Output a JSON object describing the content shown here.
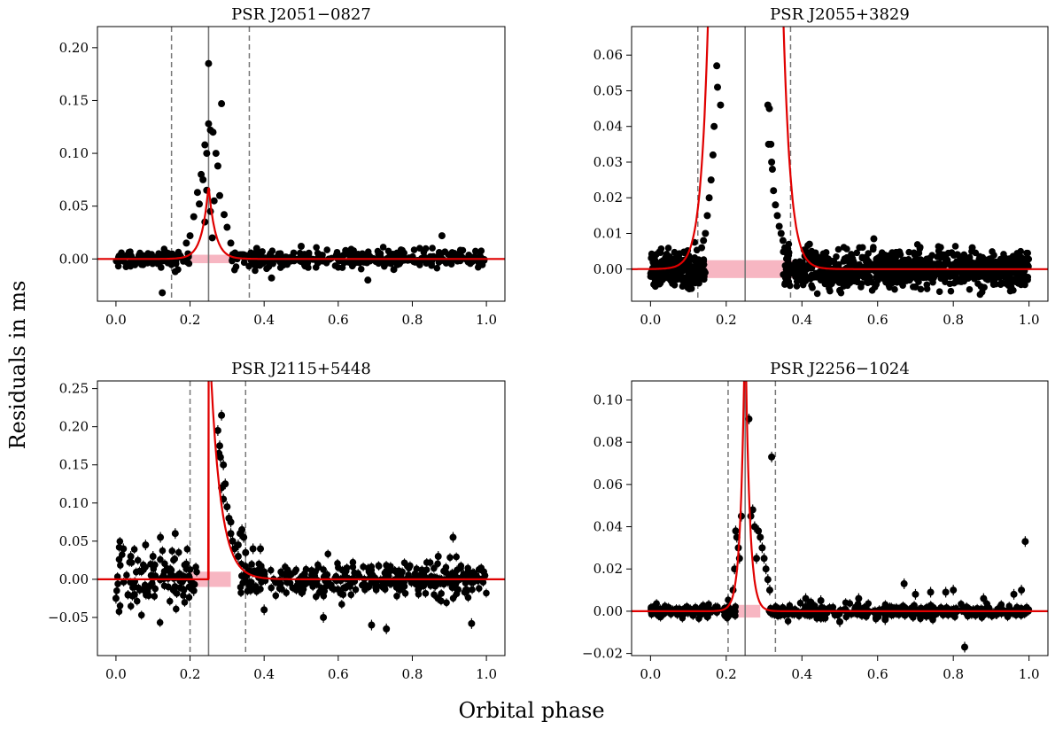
{
  "figure": {
    "ylabel": "Residuals in ms",
    "xlabel": "Orbital phase"
  },
  "chart_data": [
    {
      "type": "scatter",
      "title": "PSR J2051−0827",
      "xlabel": "Orbital phase",
      "ylabel": "Residuals in ms",
      "xlim": [
        -0.05,
        1.05
      ],
      "ylim": [
        -0.04,
        0.22
      ],
      "xticks": [
        0.0,
        0.2,
        0.4,
        0.6,
        0.8,
        1.0
      ],
      "xtick_labels": [
        "0.0",
        "0.2",
        "0.4",
        "0.6",
        "0.8",
        "1.0"
      ],
      "yticks": [
        0.0,
        0.05,
        0.1,
        0.15,
        0.2
      ],
      "ytick_labels": [
        "0.00",
        "0.05",
        "0.10",
        "0.15",
        "0.20"
      ],
      "eclipse_center": 0.25,
      "eclipse_bounds": [
        0.15,
        0.36
      ],
      "shaded_band": {
        "x": [
          0.2,
          0.31
        ],
        "y": [
          -0.004,
          0.004
        ],
        "color": "#f7b6c2"
      },
      "fit": {
        "type": "peak",
        "center": 0.25,
        "amplitude": 0.07,
        "width": 0.018,
        "color": "#e00000"
      },
      "baseline_scatter": 0.004,
      "highlights": [
        [
          0.25,
          0.185
        ],
        [
          0.285,
          0.147
        ],
        [
          0.25,
          0.128
        ],
        [
          0.255,
          0.122
        ],
        [
          0.262,
          0.12
        ],
        [
          0.24,
          0.108
        ],
        [
          0.245,
          0.1
        ],
        [
          0.27,
          0.1
        ],
        [
          0.275,
          0.088
        ],
        [
          0.23,
          0.08
        ],
        [
          0.235,
          0.075
        ],
        [
          0.22,
          0.063
        ],
        [
          0.28,
          0.06
        ],
        [
          0.225,
          0.052
        ],
        [
          0.265,
          0.055
        ],
        [
          0.292,
          0.042
        ],
        [
          0.21,
          0.04
        ],
        [
          0.3,
          0.03
        ],
        [
          0.26,
          0.02
        ],
        [
          0.24,
          0.035
        ],
        [
          0.2,
          0.022
        ],
        [
          0.19,
          0.015
        ],
        [
          0.31,
          0.015
        ],
        [
          0.255,
          0.045
        ],
        [
          0.245,
          0.065
        ],
        [
          0.125,
          -0.032
        ],
        [
          0.68,
          -0.02
        ],
        [
          0.88,
          0.022
        ],
        [
          0.42,
          -0.018
        ],
        [
          0.38,
          0.01
        ],
        [
          0.5,
          0.012
        ],
        [
          0.62,
          0.008
        ],
        [
          0.75,
          -0.01
        ],
        [
          0.93,
          0.006
        ],
        [
          0.16,
          -0.012
        ]
      ]
    },
    {
      "type": "scatter",
      "title": "PSR J2055+3829",
      "xlabel": "Orbital phase",
      "ylabel": "Residuals in ms",
      "xlim": [
        -0.05,
        1.05
      ],
      "ylim": [
        -0.009,
        0.068
      ],
      "xticks": [
        0.0,
        0.2,
        0.4,
        0.6,
        0.8,
        1.0
      ],
      "xtick_labels": [
        "0.0",
        "0.2",
        "0.4",
        "0.6",
        "0.8",
        "1.0"
      ],
      "yticks": [
        0.0,
        0.01,
        0.02,
        0.03,
        0.04,
        0.05,
        0.06
      ],
      "ytick_labels": [
        "0.00",
        "0.01",
        "0.02",
        "0.03",
        "0.04",
        "0.05",
        "0.06"
      ],
      "eclipse_center": 0.25,
      "eclipse_bounds": [
        0.125,
        0.37
      ],
      "shaded_band": {
        "x": [
          0.125,
          0.375
        ],
        "y": [
          -0.0025,
          0.0025
        ],
        "color": "#f7b6c2"
      },
      "fit": {
        "type": "wings",
        "center": 0.25,
        "edges": [
          0.155,
          0.348
        ],
        "amplitude": 0.0035,
        "decay": 0.019,
        "color": "#e00000"
      },
      "baseline_scatter": 0.0025,
      "highlights": [
        [
          0.175,
          0.057
        ],
        [
          0.177,
          0.051
        ],
        [
          0.185,
          0.046
        ],
        [
          0.168,
          0.04
        ],
        [
          0.165,
          0.032
        ],
        [
          0.16,
          0.025
        ],
        [
          0.155,
          0.02
        ],
        [
          0.15,
          0.015
        ],
        [
          0.145,
          0.01
        ],
        [
          0.14,
          0.008
        ],
        [
          0.135,
          0.006
        ],
        [
          0.31,
          0.046
        ],
        [
          0.314,
          0.045
        ],
        [
          0.318,
          0.035
        ],
        [
          0.312,
          0.035
        ],
        [
          0.322,
          0.028
        ],
        [
          0.32,
          0.03
        ],
        [
          0.325,
          0.022
        ],
        [
          0.33,
          0.018
        ],
        [
          0.335,
          0.015
        ],
        [
          0.34,
          0.012
        ],
        [
          0.345,
          0.01
        ],
        [
          0.35,
          0.008
        ],
        [
          0.355,
          0.006
        ],
        [
          0.36,
          0.005
        ],
        [
          0.59,
          0.0085
        ],
        [
          0.42,
          0.007
        ],
        [
          0.85,
          0.006
        ],
        [
          0.5,
          -0.006
        ],
        [
          0.7,
          -0.005
        ]
      ]
    },
    {
      "type": "scatter",
      "title": "PSR J2115+5448",
      "xlabel": "Orbital phase",
      "ylabel": "Residuals in ms",
      "xlim": [
        -0.05,
        1.05
      ],
      "ylim": [
        -0.1,
        0.26
      ],
      "xticks": [
        0.0,
        0.2,
        0.4,
        0.6,
        0.8,
        1.0
      ],
      "xtick_labels": [
        "0.0",
        "0.2",
        "0.4",
        "0.6",
        "0.8",
        "1.0"
      ],
      "yticks": [
        -0.05,
        0.0,
        0.05,
        0.1,
        0.15,
        0.2,
        0.25
      ],
      "ytick_labels": [
        "−0.05",
        "0.00",
        "0.05",
        "0.10",
        "0.15",
        "0.20",
        "0.25"
      ],
      "eclipse_center": 0.25,
      "eclipse_bounds": [
        0.2,
        0.35
      ],
      "shaded_band": {
        "x": [
          0.2,
          0.31
        ],
        "y": [
          -0.01,
          0.01
        ],
        "color": "#f7b6c2"
      },
      "fit": {
        "type": "step",
        "start": 0.25,
        "peak_x": 0.25,
        "amplitude": 0.34,
        "decay": 0.028,
        "color": "#e00000"
      },
      "baseline_scatter": 0.012,
      "highlights": [
        [
          0.285,
          0.215
        ],
        [
          0.275,
          0.195
        ],
        [
          0.28,
          0.175
        ],
        [
          0.278,
          0.165
        ],
        [
          0.282,
          0.16
        ],
        [
          0.29,
          0.15
        ],
        [
          0.295,
          0.125
        ],
        [
          0.285,
          0.12
        ],
        [
          0.3,
          0.095
        ],
        [
          0.29,
          0.105
        ],
        [
          0.31,
          0.06
        ],
        [
          0.315,
          0.05
        ],
        [
          0.32,
          0.04
        ],
        [
          0.33,
          0.045
        ],
        [
          0.335,
          0.06
        ],
        [
          0.34,
          0.065
        ],
        [
          0.345,
          0.055
        ],
        [
          0.35,
          0.035
        ],
        [
          0.33,
          0.03
        ],
        [
          0.37,
          0.04
        ],
        [
          0.39,
          0.04
        ],
        [
          0.31,
          0.075
        ],
        [
          0.305,
          0.08
        ],
        [
          0.16,
          0.06
        ],
        [
          0.12,
          0.055
        ],
        [
          0.08,
          0.045
        ],
        [
          0.02,
          0.04
        ],
        [
          0.04,
          0.03
        ],
        [
          0.1,
          0.03
        ],
        [
          0.19,
          0.02
        ],
        [
          0.56,
          -0.05
        ],
        [
          0.69,
          -0.06
        ],
        [
          0.73,
          -0.065
        ],
        [
          0.96,
          -0.058
        ],
        [
          0.91,
          0.055
        ],
        [
          0.4,
          -0.04
        ],
        [
          0.0,
          -0.025
        ],
        [
          0.87,
          0.03
        ],
        [
          0.21,
          -0.015
        ],
        [
          0.05,
          -0.02
        ]
      ]
    },
    {
      "type": "scatter",
      "title": "PSR J2256−1024",
      "xlabel": "Orbital phase",
      "ylabel": "Residuals in ms",
      "xlim": [
        -0.05,
        1.05
      ],
      "ylim": [
        -0.021,
        0.109
      ],
      "xticks": [
        0.0,
        0.2,
        0.4,
        0.6,
        0.8,
        1.0
      ],
      "xtick_labels": [
        "0.0",
        "0.2",
        "0.4",
        "0.6",
        "0.8",
        "1.0"
      ],
      "yticks": [
        -0.02,
        0.0,
        0.02,
        0.04,
        0.06,
        0.08,
        0.1
      ],
      "ytick_labels": [
        "−0.02",
        "0.00",
        "0.02",
        "0.04",
        "0.06",
        "0.08",
        "0.10"
      ],
      "eclipse_center": 0.25,
      "eclipse_bounds": [
        0.205,
        0.33
      ],
      "shaded_band": {
        "x": [
          0.205,
          0.29
        ],
        "y": [
          -0.003,
          0.003
        ],
        "color": "#f7b6c2"
      },
      "fit": {
        "type": "peak",
        "center": 0.25,
        "amplitude": 0.14,
        "width": 0.011,
        "color": "#e00000"
      },
      "baseline_scatter": 0.0015,
      "highlights": [
        [
          0.26,
          0.091
        ],
        [
          0.32,
          0.073
        ],
        [
          0.265,
          0.045
        ],
        [
          0.27,
          0.048
        ],
        [
          0.29,
          0.035
        ],
        [
          0.285,
          0.038
        ],
        [
          0.295,
          0.03
        ],
        [
          0.3,
          0.025
        ],
        [
          0.305,
          0.02
        ],
        [
          0.31,
          0.015
        ],
        [
          0.315,
          0.01
        ],
        [
          0.225,
          0.038
        ],
        [
          0.228,
          0.035
        ],
        [
          0.232,
          0.03
        ],
        [
          0.235,
          0.025
        ],
        [
          0.222,
          0.02
        ],
        [
          0.218,
          0.01
        ],
        [
          0.24,
          0.045
        ],
        [
          0.275,
          0.04
        ],
        [
          0.28,
          0.025
        ],
        [
          0.99,
          0.033
        ],
        [
          0.98,
          0.01
        ],
        [
          0.96,
          0.008
        ],
        [
          0.83,
          -0.017
        ],
        [
          0.8,
          0.01
        ],
        [
          0.67,
          0.013
        ],
        [
          0.7,
          0.008
        ],
        [
          0.74,
          0.009
        ],
        [
          0.78,
          0.009
        ],
        [
          0.55,
          0.006
        ],
        [
          0.62,
          -0.004
        ],
        [
          0.5,
          -0.005
        ],
        [
          0.45,
          0.005
        ],
        [
          0.41,
          0.006
        ],
        [
          0.88,
          0.006
        ]
      ]
    }
  ]
}
